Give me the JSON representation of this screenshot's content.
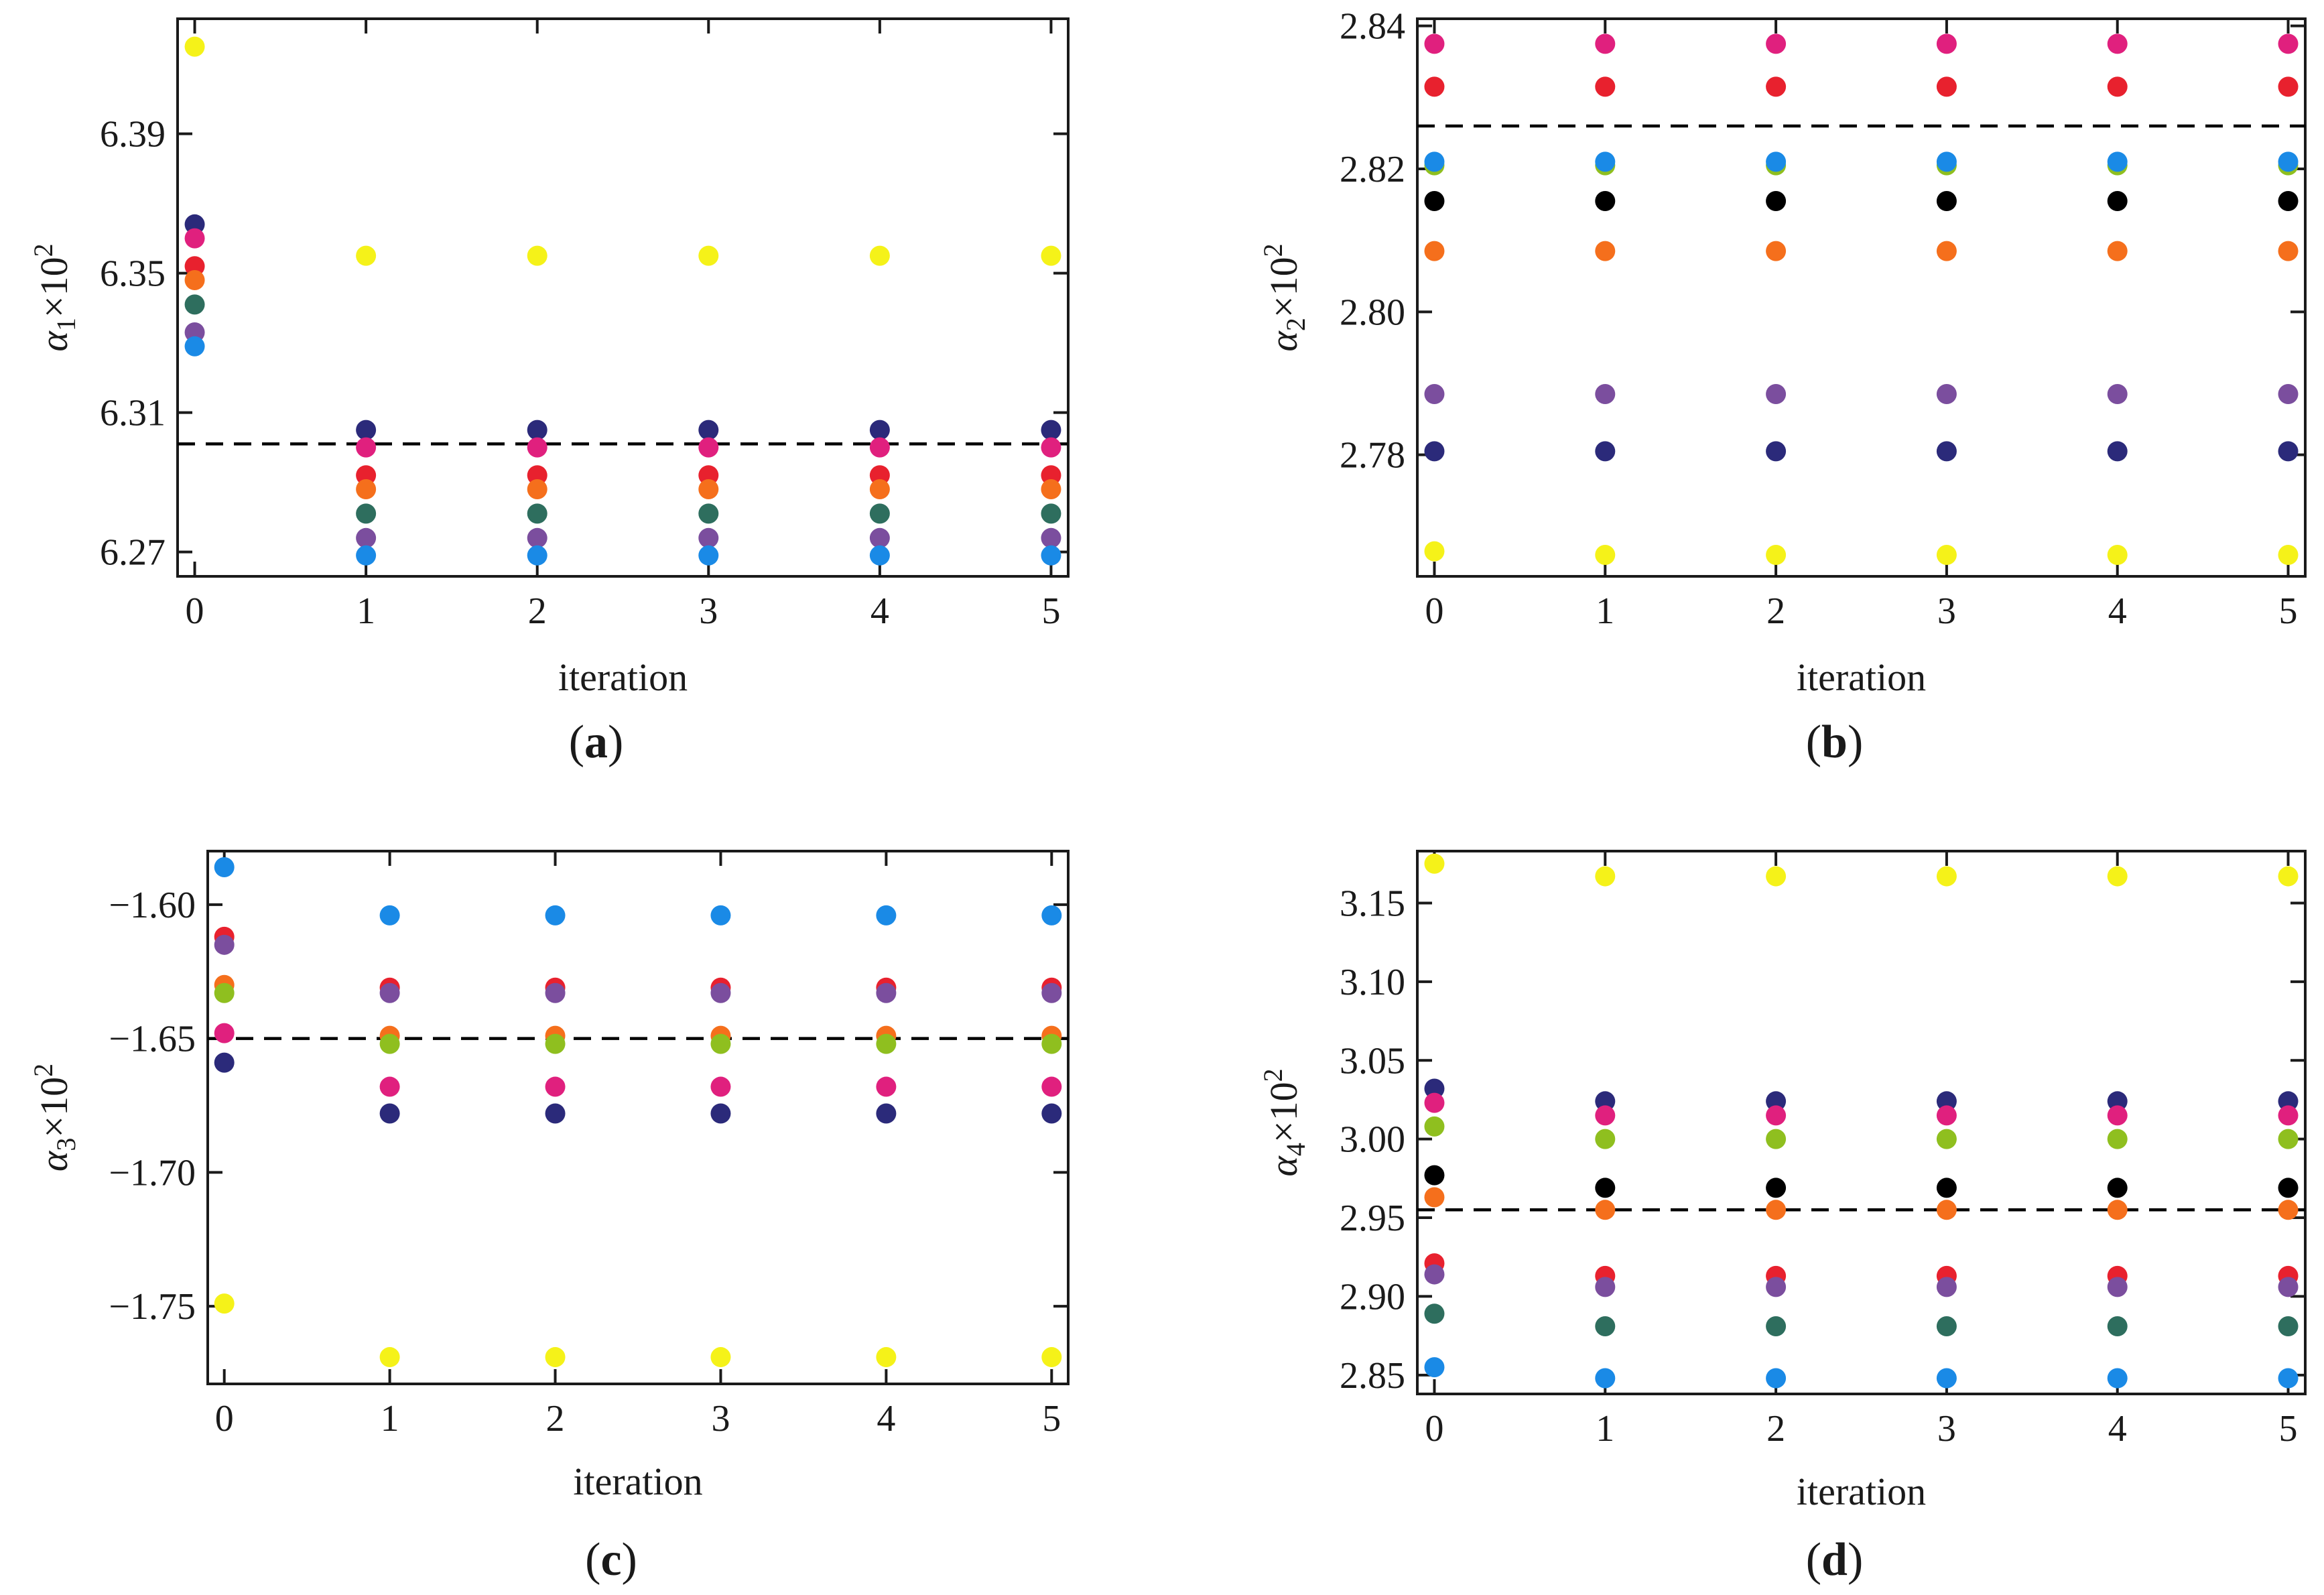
{
  "colors": {
    "navy": "#2b2a7a",
    "pink": "#e0207e",
    "red": "#e8212e",
    "orange": "#f56f1c",
    "olive": "#8fbf1f",
    "teal": "#2e6e5e",
    "purple": "#7b4e9e",
    "blue": "#1a8ae6",
    "yellow": "#f5f219",
    "black": "#000000",
    "reference_line": "#000000"
  },
  "chart_data": [
    {
      "id": "a",
      "type": "scatter",
      "panel_label": "a",
      "xlabel": "iteration",
      "ylabel_symbol": "α",
      "ylabel_sub": "1",
      "ylabel_suffix": "×10",
      "ylabel_sup": "2",
      "x": [
        0,
        1,
        2,
        3,
        4,
        5
      ],
      "xticks": [
        0,
        1,
        2,
        3,
        4,
        5
      ],
      "xticklabels": [
        "0",
        "1",
        "2",
        "3",
        "4",
        "5"
      ],
      "yticks": [
        6.27,
        6.31,
        6.35,
        6.39
      ],
      "yticklabels": [
        "6.27",
        "6.31",
        "6.35",
        "6.39"
      ],
      "xlim": [
        -0.1,
        5.1
      ],
      "ylim": [
        6.263,
        6.423
      ],
      "reference_line": 6.301,
      "series": [
        {
          "color": "yellow",
          "values": [
            6.415,
            6.355,
            6.355,
            6.355,
            6.355,
            6.355
          ]
        },
        {
          "color": "navy",
          "values": [
            6.364,
            6.305,
            6.305,
            6.305,
            6.305,
            6.305
          ]
        },
        {
          "color": "pink",
          "values": [
            6.36,
            6.3,
            6.3,
            6.3,
            6.3,
            6.3
          ]
        },
        {
          "color": "red",
          "values": [
            6.352,
            6.292,
            6.292,
            6.292,
            6.292,
            6.292
          ]
        },
        {
          "color": "orange",
          "values": [
            6.348,
            6.288,
            6.288,
            6.288,
            6.288,
            6.288
          ]
        },
        {
          "color": "teal",
          "values": [
            6.341,
            6.281,
            6.281,
            6.281,
            6.281,
            6.281
          ]
        },
        {
          "color": "purple",
          "values": [
            6.333,
            6.274,
            6.274,
            6.274,
            6.274,
            6.274
          ]
        },
        {
          "color": "blue",
          "values": [
            6.329,
            6.269,
            6.269,
            6.269,
            6.269,
            6.269
          ]
        }
      ]
    },
    {
      "id": "b",
      "type": "scatter",
      "panel_label": "b",
      "xlabel": "iteration",
      "ylabel_symbol": "α",
      "ylabel_sub": "2",
      "ylabel_suffix": "×10",
      "ylabel_sup": "2",
      "x": [
        0,
        1,
        2,
        3,
        4,
        5
      ],
      "xticks": [
        0,
        1,
        2,
        3,
        4,
        5
      ],
      "xticklabels": [
        "0",
        "1",
        "2",
        "3",
        "4",
        "5"
      ],
      "yticks": [
        2.78,
        2.8,
        2.82,
        2.84
      ],
      "yticklabels": [
        "2.78",
        "2.80",
        "2.82",
        "2.84"
      ],
      "xlim": [
        -0.1,
        5.1
      ],
      "ylim": [
        2.763,
        2.841
      ],
      "reference_line": 2.826,
      "series": [
        {
          "color": "pink",
          "values": [
            2.8375,
            2.8375,
            2.8375,
            2.8375,
            2.8375,
            2.8375
          ]
        },
        {
          "color": "red",
          "values": [
            2.8315,
            2.8315,
            2.8315,
            2.8315,
            2.8315,
            2.8315
          ]
        },
        {
          "color": "olive",
          "values": [
            2.8205,
            2.8205,
            2.8205,
            2.8205,
            2.8205,
            2.8205
          ]
        },
        {
          "color": "blue",
          "values": [
            2.821,
            2.821,
            2.821,
            2.821,
            2.821,
            2.821
          ]
        },
        {
          "color": "black",
          "values": [
            2.8155,
            2.8155,
            2.8155,
            2.8155,
            2.8155,
            2.8155
          ]
        },
        {
          "color": "orange",
          "values": [
            2.8085,
            2.8085,
            2.8085,
            2.8085,
            2.8085,
            2.8085
          ]
        },
        {
          "color": "purple",
          "values": [
            2.7885,
            2.7885,
            2.7885,
            2.7885,
            2.7885,
            2.7885
          ]
        },
        {
          "color": "navy",
          "values": [
            2.7805,
            2.7805,
            2.7805,
            2.7805,
            2.7805,
            2.7805
          ]
        },
        {
          "color": "yellow",
          "values": [
            2.7665,
            2.766,
            2.766,
            2.766,
            2.766,
            2.766
          ]
        }
      ]
    },
    {
      "id": "c",
      "type": "scatter",
      "panel_label": "c",
      "xlabel": "iteration",
      "ylabel_symbol": "α",
      "ylabel_sub": "3",
      "ylabel_suffix": "×10",
      "ylabel_sup": "2",
      "x": [
        0,
        1,
        2,
        3,
        4,
        5
      ],
      "xticks": [
        0,
        1,
        2,
        3,
        4,
        5
      ],
      "xticklabels": [
        "0",
        "1",
        "2",
        "3",
        "4",
        "5"
      ],
      "yticks": [
        -1.6,
        -1.65,
        -1.7,
        -1.75
      ],
      "yticklabels": [
        "−1.60",
        "−1.65",
        "−1.70",
        "−1.75"
      ],
      "xlim": [
        -0.1,
        5.1
      ],
      "ylim": [
        -1.779,
        -1.58
      ],
      "reference_line": -1.65,
      "series": [
        {
          "color": "blue",
          "values": [
            -1.586,
            -1.604,
            -1.604,
            -1.604,
            -1.604,
            -1.604
          ]
        },
        {
          "color": "red",
          "values": [
            -1.612,
            -1.631,
            -1.631,
            -1.631,
            -1.631,
            -1.631
          ]
        },
        {
          "color": "purple",
          "values": [
            -1.615,
            -1.633,
            -1.633,
            -1.633,
            -1.633,
            -1.633
          ]
        },
        {
          "color": "orange",
          "values": [
            -1.63,
            -1.649,
            -1.649,
            -1.649,
            -1.649,
            -1.649
          ]
        },
        {
          "color": "olive",
          "values": [
            -1.633,
            -1.652,
            -1.652,
            -1.652,
            -1.652,
            -1.652
          ]
        },
        {
          "color": "pink",
          "values": [
            -1.648,
            -1.668,
            -1.668,
            -1.668,
            -1.668,
            -1.668
          ]
        },
        {
          "color": "navy",
          "values": [
            -1.659,
            -1.678,
            -1.678,
            -1.678,
            -1.678,
            -1.678
          ]
        },
        {
          "color": "yellow",
          "values": [
            -1.749,
            -1.769,
            -1.769,
            -1.769,
            -1.769,
            -1.769
          ]
        }
      ]
    },
    {
      "id": "d",
      "type": "scatter",
      "panel_label": "d",
      "xlabel": "iteration",
      "ylabel_symbol": "α",
      "ylabel_sub": "4",
      "ylabel_suffix": "×10",
      "ylabel_sup": "2",
      "x": [
        0,
        1,
        2,
        3,
        4,
        5
      ],
      "xticks": [
        0,
        1,
        2,
        3,
        4,
        5
      ],
      "xticklabels": [
        "0",
        "1",
        "2",
        "3",
        "4",
        "5"
      ],
      "yticks": [
        2.85,
        2.9,
        2.95,
        3.0,
        3.05,
        3.1,
        3.15
      ],
      "yticklabels": [
        "2.85",
        "2.90",
        "2.95",
        "3.00",
        "3.05",
        "3.10",
        "3.15"
      ],
      "xlim": [
        -0.1,
        5.1
      ],
      "ylim": [
        2.838,
        3.183
      ],
      "reference_line": 2.955,
      "series": [
        {
          "color": "yellow",
          "values": [
            3.175,
            3.167,
            3.167,
            3.167,
            3.167,
            3.167
          ]
        },
        {
          "color": "navy",
          "values": [
            3.032,
            3.024,
            3.024,
            3.024,
            3.024,
            3.024
          ]
        },
        {
          "color": "pink",
          "values": [
            3.023,
            3.015,
            3.015,
            3.015,
            3.015,
            3.015
          ]
        },
        {
          "color": "olive",
          "values": [
            3.008,
            3.0,
            3.0,
            3.0,
            3.0,
            3.0
          ]
        },
        {
          "color": "black",
          "values": [
            2.977,
            2.969,
            2.969,
            2.969,
            2.969,
            2.969
          ]
        },
        {
          "color": "orange",
          "values": [
            2.963,
            2.955,
            2.955,
            2.955,
            2.955,
            2.955
          ]
        },
        {
          "color": "red",
          "values": [
            2.921,
            2.913,
            2.913,
            2.913,
            2.913,
            2.913
          ]
        },
        {
          "color": "purple",
          "values": [
            2.914,
            2.906,
            2.906,
            2.906,
            2.906,
            2.906
          ]
        },
        {
          "color": "teal",
          "values": [
            2.889,
            2.881,
            2.881,
            2.881,
            2.881,
            2.881
          ]
        },
        {
          "color": "blue",
          "values": [
            2.855,
            2.848,
            2.848,
            2.848,
            2.848,
            2.848
          ]
        }
      ]
    }
  ]
}
